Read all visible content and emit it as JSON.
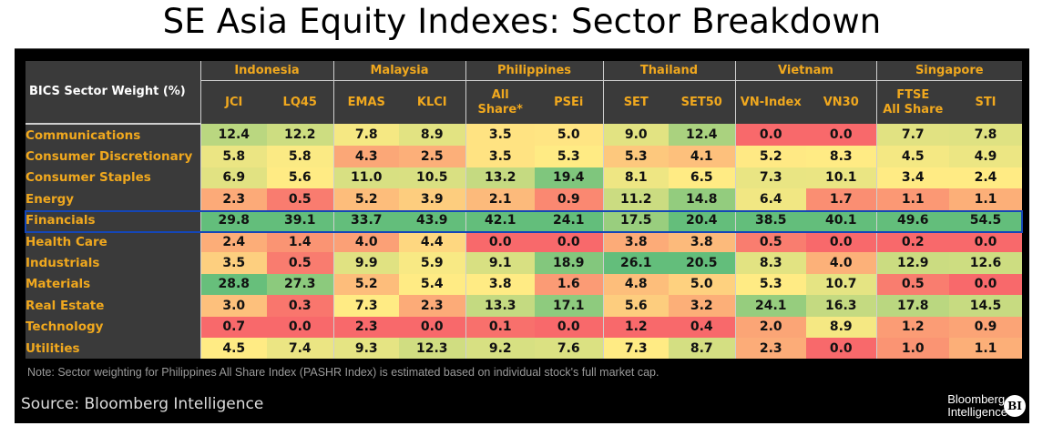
{
  "title": "SE Asia Equity Indexes: Sector Breakdown",
  "chart_data": {
    "type": "table",
    "title": "SE Asia Equity Indexes: Sector Breakdown",
    "corner_header": "BICS Sector Weight (%)",
    "countries": [
      {
        "name": "Indonesia",
        "indexes": [
          "JCI",
          "LQ45"
        ]
      },
      {
        "name": "Malaysia",
        "indexes": [
          "EMAS",
          "KLCI"
        ]
      },
      {
        "name": "Philippines",
        "indexes": [
          "All Share*",
          "PSEi"
        ]
      },
      {
        "name": "Thailand",
        "indexes": [
          "SET",
          "SET50"
        ]
      },
      {
        "name": "Vietnam",
        "indexes": [
          "VN-Index",
          "VN30"
        ]
      },
      {
        "name": "Singapore",
        "indexes": [
          "FTSE All Share",
          "STI"
        ]
      }
    ],
    "rows": [
      {
        "sector": "Communications",
        "values": [
          "12.4",
          "12.2",
          "7.8",
          "8.9",
          "3.5",
          "5.0",
          "9.0",
          "12.4",
          "0.0",
          "0.0",
          "7.7",
          "7.8"
        ]
      },
      {
        "sector": "Consumer Discretionary",
        "values": [
          "5.8",
          "5.8",
          "4.3",
          "2.5",
          "3.5",
          "5.3",
          "5.3",
          "4.1",
          "5.2",
          "8.3",
          "4.5",
          "4.9"
        ]
      },
      {
        "sector": "Consumer Staples",
        "values": [
          "6.9",
          "5.6",
          "11.0",
          "10.5",
          "13.2",
          "19.4",
          "8.1",
          "6.5",
          "7.3",
          "10.1",
          "3.4",
          "2.4"
        ]
      },
      {
        "sector": "Energy",
        "values": [
          "2.3",
          "0.5",
          "5.2",
          "3.9",
          "2.1",
          "0.9",
          "11.2",
          "14.8",
          "6.4",
          "1.7",
          "1.1",
          "1.1"
        ]
      },
      {
        "sector": "Financials",
        "values": [
          "29.8",
          "39.1",
          "33.7",
          "43.9",
          "42.1",
          "24.1",
          "17.5",
          "20.4",
          "38.5",
          "40.1",
          "49.6",
          "54.5"
        ],
        "highlighted": true
      },
      {
        "sector": "Health Care",
        "values": [
          "2.4",
          "1.4",
          "4.0",
          "4.4",
          "0.0",
          "0.0",
          "3.8",
          "3.8",
          "0.5",
          "0.0",
          "0.2",
          "0.0"
        ]
      },
      {
        "sector": "Industrials",
        "values": [
          "3.5",
          "0.5",
          "9.9",
          "5.9",
          "9.1",
          "18.9",
          "26.1",
          "20.5",
          "8.3",
          "4.0",
          "12.9",
          "12.6"
        ]
      },
      {
        "sector": "Materials",
        "values": [
          "28.8",
          "27.3",
          "5.2",
          "5.4",
          "3.8",
          "1.6",
          "4.8",
          "5.0",
          "5.3",
          "10.7",
          "0.5",
          "0.0"
        ]
      },
      {
        "sector": "Real Estate",
        "values": [
          "3.0",
          "0.3",
          "7.3",
          "2.3",
          "13.3",
          "17.1",
          "5.6",
          "3.2",
          "24.1",
          "16.3",
          "17.8",
          "14.5"
        ]
      },
      {
        "sector": "Technology",
        "values": [
          "0.7",
          "0.0",
          "2.3",
          "0.0",
          "0.1",
          "0.0",
          "1.2",
          "0.4",
          "2.0",
          "8.9",
          "1.2",
          "0.9"
        ]
      },
      {
        "sector": "Utilities",
        "values": [
          "4.5",
          "7.4",
          "9.3",
          "12.3",
          "9.2",
          "7.6",
          "7.3",
          "8.7",
          "2.3",
          "0.0",
          "1.0",
          "1.1"
        ]
      }
    ],
    "color_scale": {
      "low": "#f8696b",
      "mid": "#ffeb84",
      "high": "#63be7b"
    },
    "highlight_color": "#1446b8"
  },
  "footer": {
    "note": "Note: Sector weighting for Philippines All Share Index (PASHR Index) is estimated based on individual stock's full market cap.",
    "source": "Source: Bloomberg Intelligence",
    "logo_line1": "Bloomberg",
    "logo_line2": "Intelligence",
    "logo_badge": "BI"
  }
}
